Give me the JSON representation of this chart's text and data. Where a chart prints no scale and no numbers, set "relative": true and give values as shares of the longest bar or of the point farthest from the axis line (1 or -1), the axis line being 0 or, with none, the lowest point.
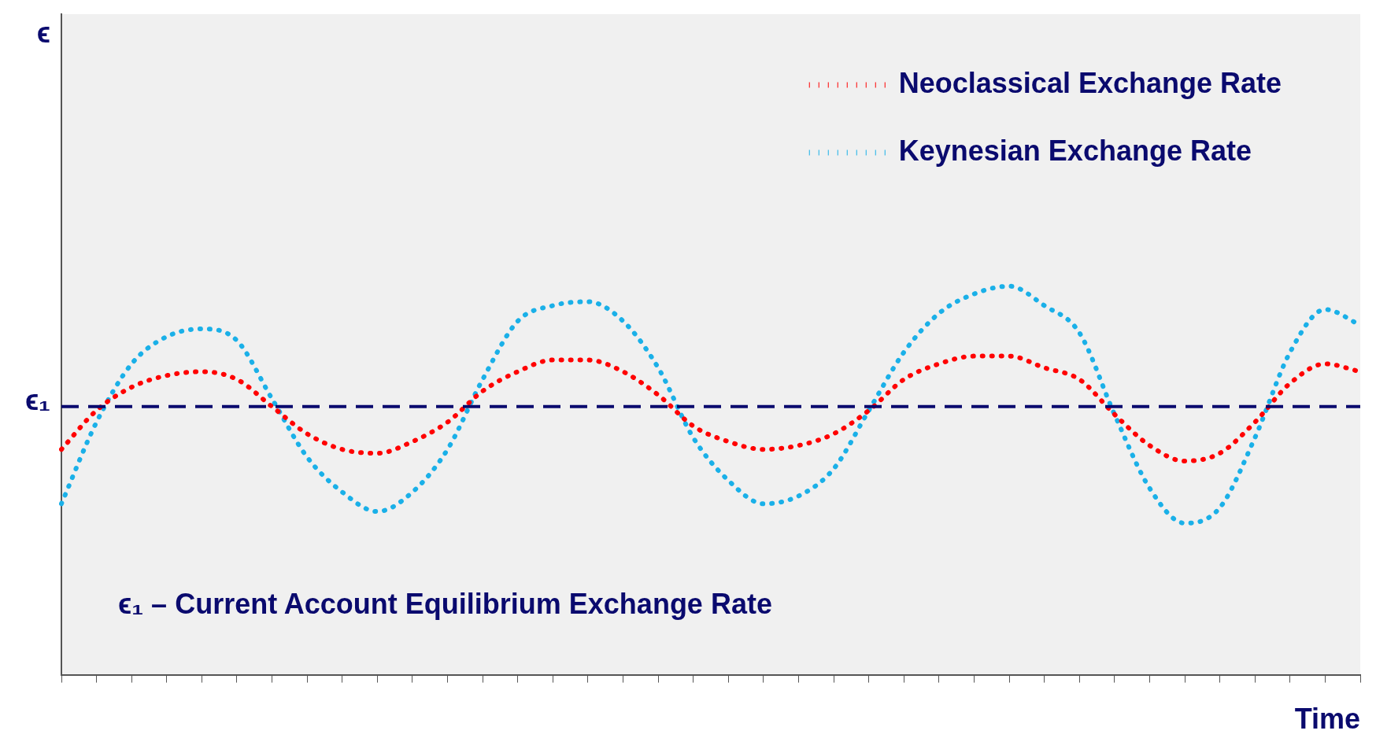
{
  "chart_data": {
    "type": "line",
    "relative": true,
    "xlabel": "Time",
    "categories": [
      null,
      null,
      null,
      null,
      null,
      null,
      null,
      null,
      null,
      null,
      null,
      null,
      null,
      null,
      null,
      null,
      null,
      null,
      null,
      null,
      null,
      null,
      null,
      null,
      null,
      null,
      null,
      null,
      null,
      null,
      null,
      null,
      null,
      null,
      null,
      null,
      null,
      null
    ],
    "series": [
      {
        "name": "Neoclassical Exchange Rate",
        "color": "#ff0000",
        "values": [
          0.58,
          0.68,
          0.74,
          0.77,
          0.78,
          0.76,
          0.69,
          0.62,
          0.58,
          0.57,
          0.6,
          0.65,
          0.73,
          0.78,
          0.81,
          0.81,
          0.78,
          0.72,
          0.64,
          0.6,
          0.58,
          0.59,
          0.62,
          0.68,
          0.76,
          0.8,
          0.82,
          0.82,
          0.79,
          0.76,
          0.67,
          0.59,
          0.55,
          0.57,
          0.65,
          0.75,
          0.8,
          0.78
        ]
      },
      {
        "name": "Keynesian Exchange Rate",
        "color": "#1ab0e8",
        "values": [
          0.44,
          0.65,
          0.8,
          0.87,
          0.89,
          0.86,
          0.71,
          0.56,
          0.47,
          0.42,
          0.47,
          0.58,
          0.76,
          0.91,
          0.95,
          0.96,
          0.91,
          0.79,
          0.61,
          0.5,
          0.44,
          0.46,
          0.53,
          0.68,
          0.83,
          0.93,
          0.98,
          1.0,
          0.95,
          0.88,
          0.67,
          0.48,
          0.39,
          0.43,
          0.61,
          0.83,
          0.94,
          0.9
        ]
      }
    ],
    "ref_lines": [
      {
        "axis": "y",
        "value": 0.69,
        "label": "ϵ₁",
        "color": "#0a0a6e",
        "line_style": "dashed"
      }
    ],
    "annotations": [
      "ϵ₁ – Current Account Equilibrium Exchange Rate",
      "ϵ"
    ],
    "legend": "top right",
    "line_style": "dotted",
    "marker": "none",
    "grid": false
  }
}
